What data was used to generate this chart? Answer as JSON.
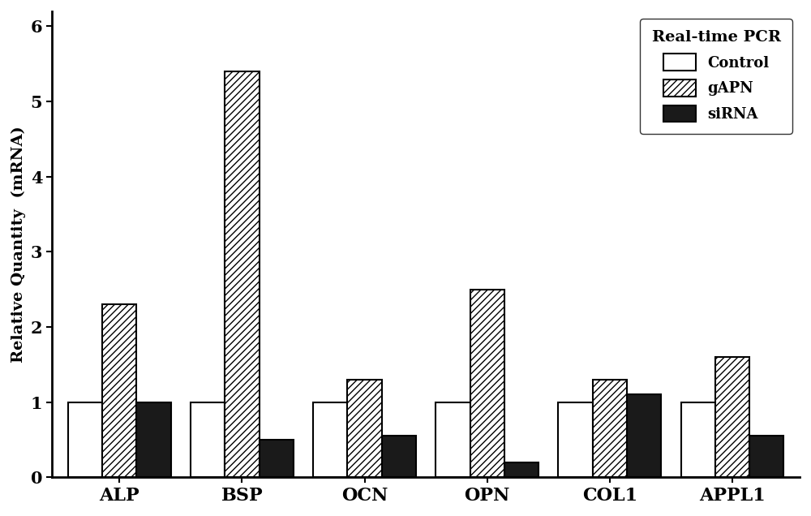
{
  "categories": [
    "ALP",
    "BSP",
    "OCN",
    "OPN",
    "COL1",
    "APPL1"
  ],
  "control": [
    1.0,
    1.0,
    1.0,
    1.0,
    1.0,
    1.0
  ],
  "gAPN": [
    2.3,
    5.4,
    1.3,
    2.5,
    1.3,
    1.6
  ],
  "siRNA": [
    1.0,
    0.5,
    0.55,
    0.2,
    1.1,
    0.55
  ],
  "ylabel": "Relative Quantity  (mRNA)",
  "title": "Real-time PCR",
  "ylim": [
    0,
    6.2
  ],
  "yticks": [
    0,
    1,
    2,
    3,
    4,
    5,
    6
  ],
  "legend_labels": [
    "Control",
    "gAPN",
    "siRNA"
  ],
  "bar_width": 0.28,
  "bg_color": "#ffffff",
  "plot_bg_color": "#ffffff",
  "control_color": "#ffffff",
  "gAPN_color": "#ffffff",
  "siRNA_color": "#1a1a1a",
  "edge_color": "#000000",
  "title_fontsize": 14,
  "label_fontsize": 13,
  "tick_fontsize": 13
}
